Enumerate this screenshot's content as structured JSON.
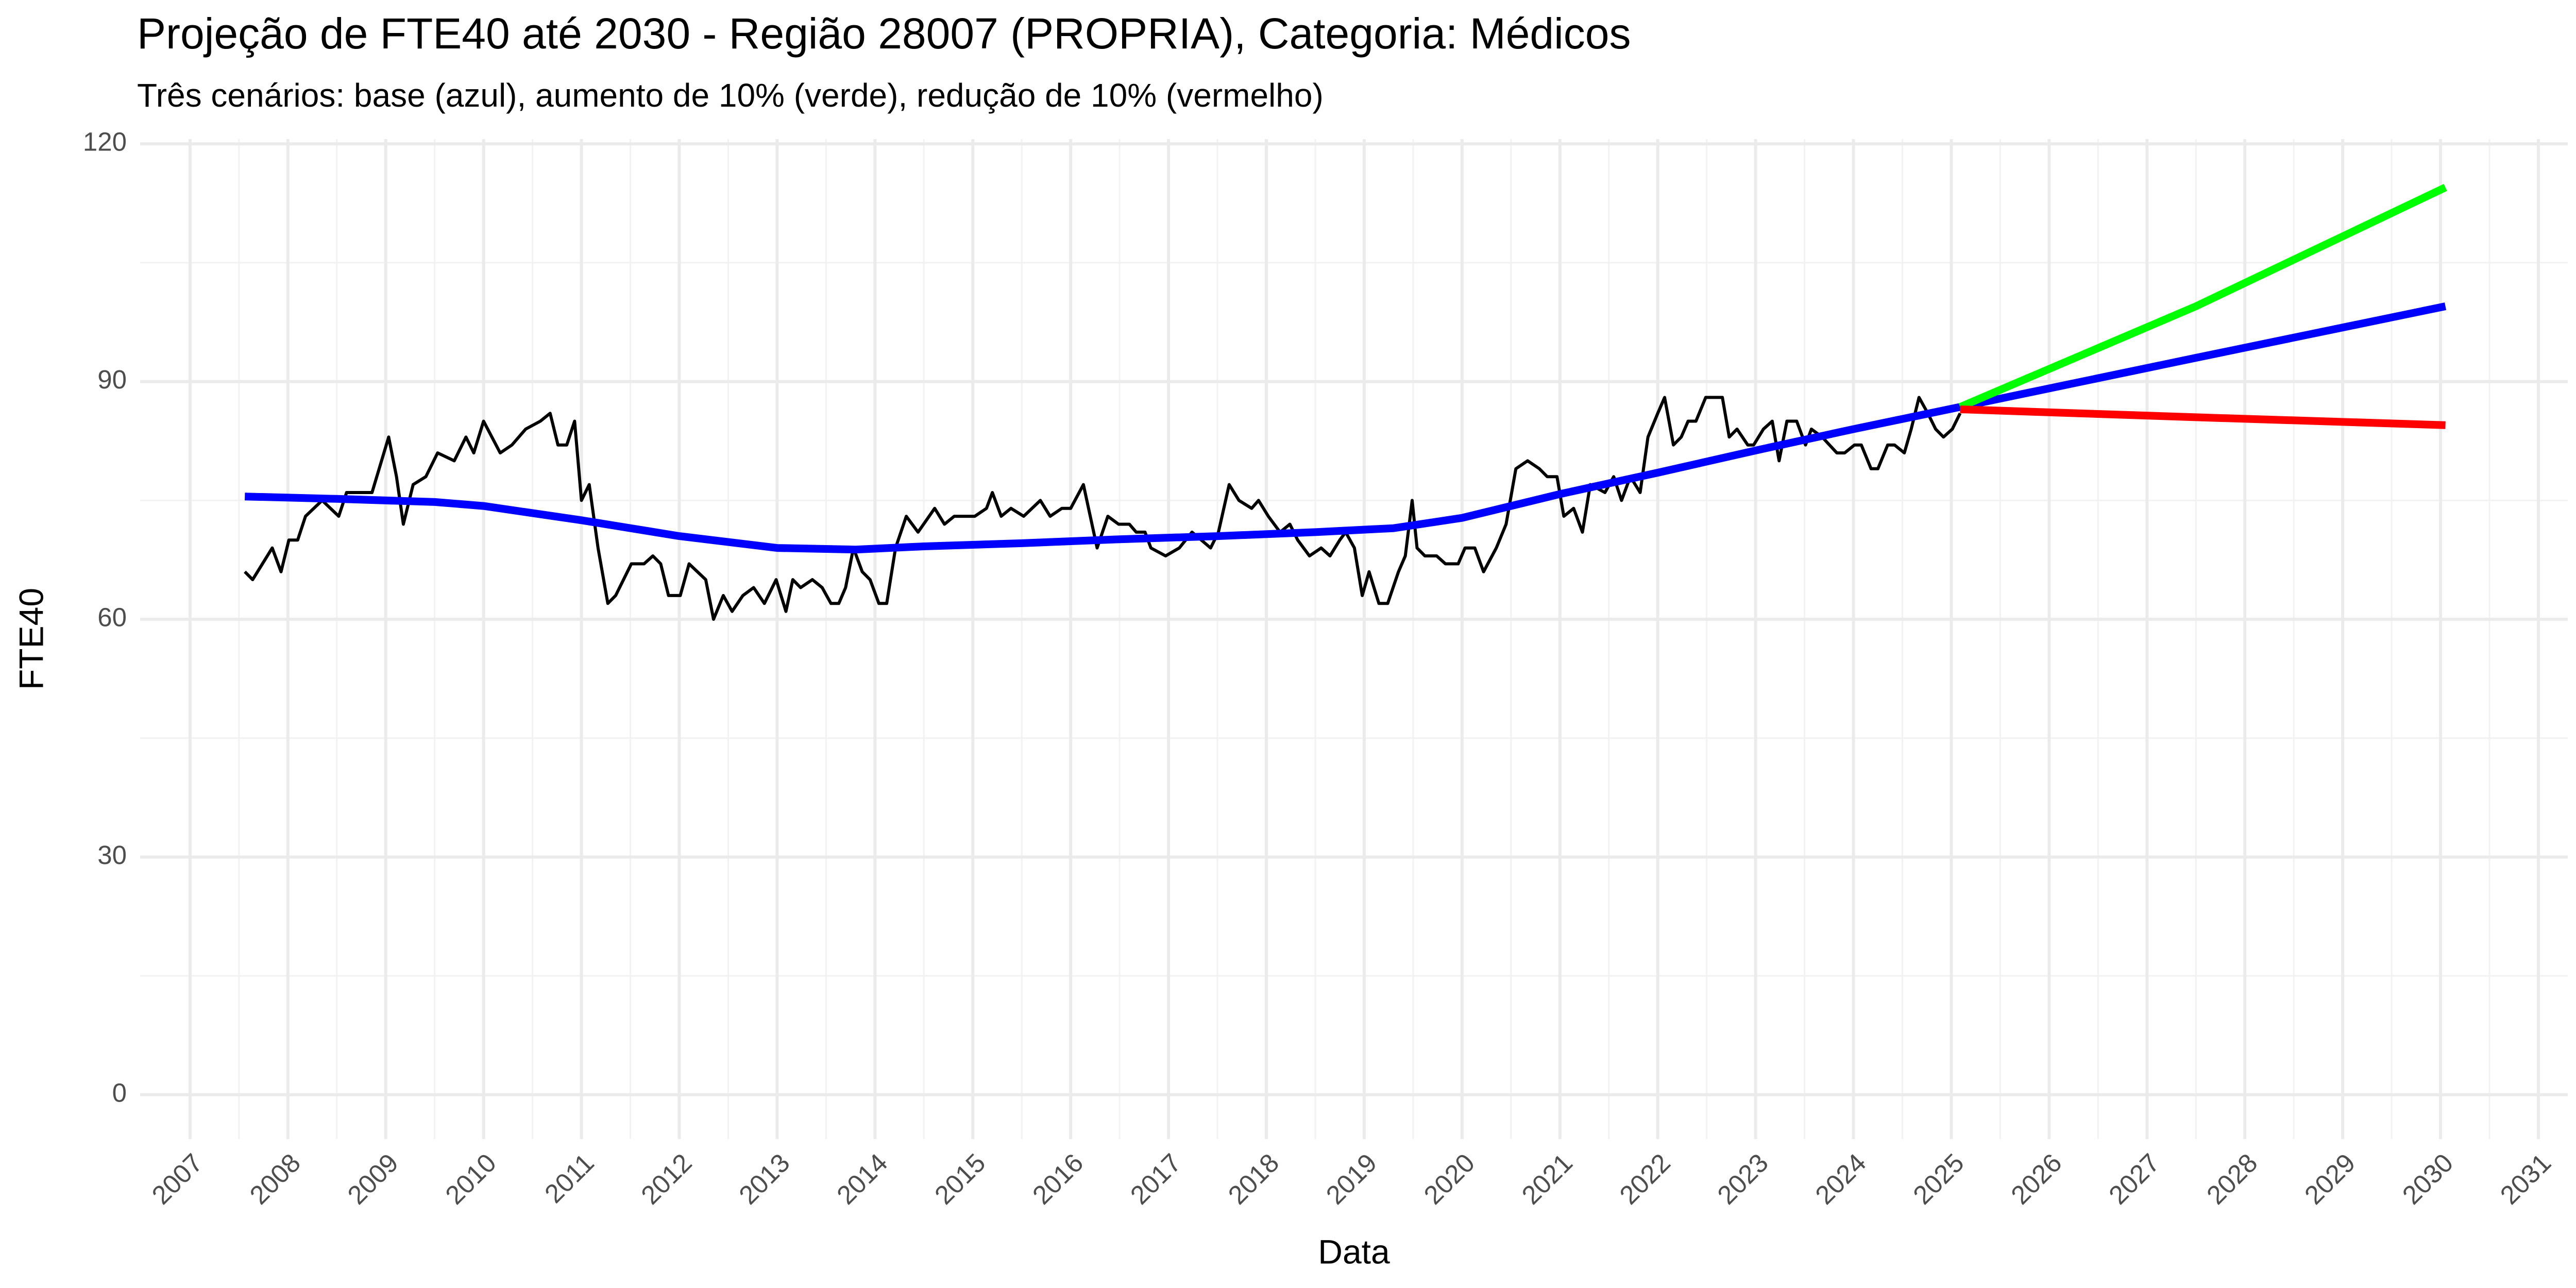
{
  "chart_data": {
    "type": "line",
    "title": "Projeção de FTE40 até 2030 - Região 28007 (PROPRIA), Categoria: Médicos",
    "subtitle": "Três cenários: base (azul), aumento de 10% (verde), redução de 10% (vermelho)",
    "xlabel": "Data",
    "ylabel": "FTE40",
    "xlim": [
      2006.49,
      2031.3
    ],
    "ylim": [
      -5.6,
      120.6
    ],
    "xticks": [
      2007,
      2008,
      2009,
      2010,
      2011,
      2012,
      2013,
      2014,
      2015,
      2016,
      2017,
      2018,
      2019,
      2020,
      2021,
      2022,
      2023,
      2024,
      2025,
      2026,
      2027,
      2028,
      2029,
      2030,
      2031
    ],
    "yticks": [
      0,
      30,
      60,
      90,
      120
    ],
    "grid": true,
    "series": [
      {
        "color": "#000000",
        "x": [
          2007.56,
          2007.64,
          2007.84,
          2007.93,
          2008.01,
          2008.1,
          2008.18,
          2008.35,
          2008.52,
          2008.6,
          2008.86,
          2009.03,
          2009.11,
          2009.18,
          2009.28,
          2009.41,
          2009.53,
          2009.7,
          2009.82,
          2009.9,
          2010.0,
          2010.17,
          2010.29,
          2010.43,
          2010.58,
          2010.68,
          2010.76,
          2010.85,
          2010.93,
          2011.0,
          2011.08,
          2011.17,
          2011.27,
          2011.35,
          2011.51,
          2011.64,
          2011.73,
          2011.81,
          2011.89,
          2012.01,
          2012.1,
          2012.27,
          2012.35,
          2012.45,
          2012.54,
          2012.65,
          2012.76,
          2012.87,
          2012.99,
          2013.09,
          2013.16,
          2013.24,
          2013.36,
          2013.46,
          2013.55,
          2013.63,
          2013.7,
          2013.78,
          2013.87,
          2013.95,
          2014.04,
          2014.12,
          2014.21,
          2014.32,
          2014.44,
          2014.61,
          2014.71,
          2014.81,
          2015.02,
          2015.14,
          2015.2,
          2015.29,
          2015.39,
          2015.52,
          2015.69,
          2015.79,
          2015.91,
          2016.0,
          2016.13,
          2016.27,
          2016.38,
          2016.49,
          2016.6,
          2016.67,
          2016.76,
          2016.82,
          2016.97,
          2017.11,
          2017.24,
          2017.43,
          2017.51,
          2017.62,
          2017.72,
          2017.85,
          2017.92,
          2018.02,
          2018.14,
          2018.24,
          2018.32,
          2018.44,
          2018.56,
          2018.65,
          2018.75,
          2018.81,
          2018.9,
          2018.98,
          2019.05,
          2019.15,
          2019.24,
          2019.35,
          2019.42,
          2019.49,
          2019.54,
          2019.62,
          2019.74,
          2019.83,
          2019.96,
          2020.03,
          2020.13,
          2020.22,
          2020.35,
          2020.45,
          2020.55,
          2020.67,
          2020.79,
          2020.87,
          2020.97,
          2021.04,
          2021.14,
          2021.23,
          2021.31,
          2021.46,
          2021.55,
          2021.63,
          2021.72,
          2021.82,
          2021.9,
          2022.0,
          2022.07,
          2022.16,
          2022.24,
          2022.31,
          2022.39,
          2022.49,
          2022.66,
          2022.73,
          2022.81,
          2022.92,
          2022.98,
          2023.08,
          2023.17,
          2023.24,
          2023.32,
          2023.42,
          2023.51,
          2023.57,
          2023.68,
          2023.83,
          2023.91,
          2024.01,
          2024.08,
          2024.18,
          2024.25,
          2024.35,
          2024.42,
          2024.52,
          2024.59,
          2024.67,
          2024.76,
          2024.84,
          2024.92,
          2025.01,
          2025.09
        ],
        "values": [
          66,
          65,
          69,
          66,
          70,
          70,
          73,
          75,
          73,
          76,
          76,
          83,
          78,
          72,
          77,
          78,
          81,
          80,
          83,
          81,
          85,
          81,
          82,
          84,
          85,
          86,
          82,
          82,
          85,
          75,
          77,
          69,
          62,
          63,
          67,
          67,
          68,
          67,
          63,
          63,
          67,
          65,
          60,
          63,
          61,
          63,
          64,
          62,
          65,
          61,
          65,
          64,
          65,
          64,
          62,
          62,
          64,
          69,
          66,
          65,
          62,
          62,
          69,
          73,
          71,
          74,
          72,
          73,
          73,
          74,
          76,
          73,
          74,
          73,
          75,
          73,
          74,
          74,
          77,
          69,
          73,
          72,
          72,
          71,
          71,
          69,
          68,
          69,
          71,
          69,
          71,
          77,
          75,
          74,
          75,
          73,
          71,
          72,
          70,
          68,
          69,
          68,
          70,
          71,
          69,
          63,
          66,
          62,
          62,
          66,
          68,
          75,
          69,
          68,
          68,
          67,
          67,
          69,
          69,
          66,
          69,
          72,
          79,
          80,
          79,
          78,
          78,
          73,
          74,
          71,
          77,
          76,
          78,
          75,
          78,
          76,
          83,
          86,
          88,
          82,
          83,
          85,
          85,
          88,
          88,
          83,
          84,
          82,
          82,
          84,
          85,
          80,
          85,
          85,
          82,
          84,
          83,
          81,
          81,
          82,
          82,
          79,
          79,
          82,
          82,
          81,
          84,
          88,
          86,
          84,
          83,
          84,
          86
        ]
      },
      {
        "color": "#0000ff",
        "x": [
          2007.56,
          2008.5,
          2009.5,
          2010,
          2011,
          2012,
          2013,
          2013.8,
          2014.5,
          2015.5,
          2016.5,
          2017.5,
          2018.5,
          2019.3,
          2020,
          2021,
          2022,
          2023,
          2024,
          2025.09,
          2027.5,
          2030.05
        ],
        "values": [
          75.5,
          75.2,
          74.8,
          74.3,
          72.5,
          70.5,
          69,
          68.8,
          69.2,
          69.6,
          70.1,
          70.5,
          71,
          71.5,
          72.8,
          75.8,
          78.5,
          81.3,
          84,
          86.8,
          93,
          99.5
        ]
      },
      {
        "color": "#00ff00",
        "x": [
          2025.09,
          2027.5,
          2030.05
        ],
        "values": [
          86.8,
          99.5,
          114.5
        ]
      },
      {
        "color": "#ff0000",
        "x": [
          2025.09,
          2027.5,
          2030.05
        ],
        "values": [
          86.5,
          85.5,
          84.5
        ]
      }
    ]
  }
}
